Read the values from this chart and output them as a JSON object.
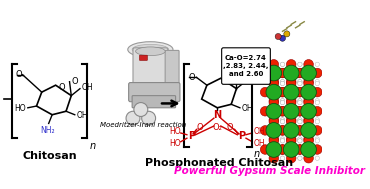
{
  "background_color": "#ffffff",
  "bottom_text": "Powerful Gypsum Scale Inhibitor",
  "bottom_text_color": "#ff00cc",
  "label_chitosan": "Chitosan",
  "label_phosphonated": "Phosphonated Chitosan",
  "label_reaction": "Moedritzer-Irani reaction",
  "label_cao": "Ca-O=2.74\n,2.83, 2.44,\nand 2.60",
  "figsize": [
    3.7,
    1.89
  ],
  "dpi": 100
}
